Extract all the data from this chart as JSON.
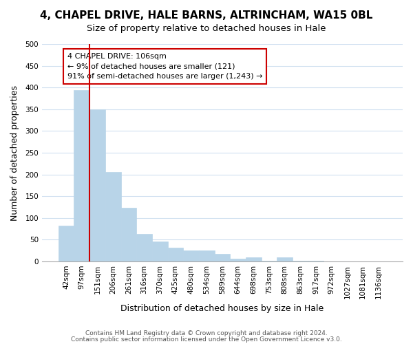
{
  "title": "4, CHAPEL DRIVE, HALE BARNS, ALTRINCHAM, WA15 0BL",
  "subtitle": "Size of property relative to detached houses in Hale",
  "xlabel": "Distribution of detached houses by size in Hale",
  "ylabel": "Number of detached properties",
  "bar_labels": [
    "42sqm",
    "97sqm",
    "151sqm",
    "206sqm",
    "261sqm",
    "316sqm",
    "370sqm",
    "425sqm",
    "480sqm",
    "534sqm",
    "589sqm",
    "644sqm",
    "698sqm",
    "753sqm",
    "808sqm",
    "863sqm",
    "917sqm",
    "972sqm",
    "1027sqm",
    "1081sqm",
    "1136sqm"
  ],
  "bar_values": [
    82,
    394,
    350,
    205,
    123,
    63,
    46,
    31,
    25,
    25,
    17,
    6,
    10,
    1,
    10,
    1,
    1,
    0,
    0,
    0,
    0
  ],
  "bar_color": "#b8d4e8",
  "bar_edge_color": "#b8d4e8",
  "ylim": [
    0,
    500
  ],
  "yticks": [
    0,
    50,
    100,
    150,
    200,
    250,
    300,
    350,
    400,
    450,
    500
  ],
  "property_line_index": 1,
  "property_line_color": "#cc0000",
  "annotation_title": "4 CHAPEL DRIVE: 106sqm",
  "annotation_line1": "← 9% of detached houses are smaller (121)",
  "annotation_line2": "91% of semi-detached houses are larger (1,243) →",
  "annotation_box_color": "#ffffff",
  "annotation_box_edge": "#cc0000",
  "footer1": "Contains HM Land Registry data © Crown copyright and database right 2024.",
  "footer2": "Contains public sector information licensed under the Open Government Licence v3.0.",
  "background_color": "#ffffff",
  "grid_color": "#d0e0f0",
  "title_fontsize": 11,
  "subtitle_fontsize": 9.5,
  "axis_label_fontsize": 9,
  "tick_fontsize": 7.5,
  "footer_fontsize": 6.5
}
